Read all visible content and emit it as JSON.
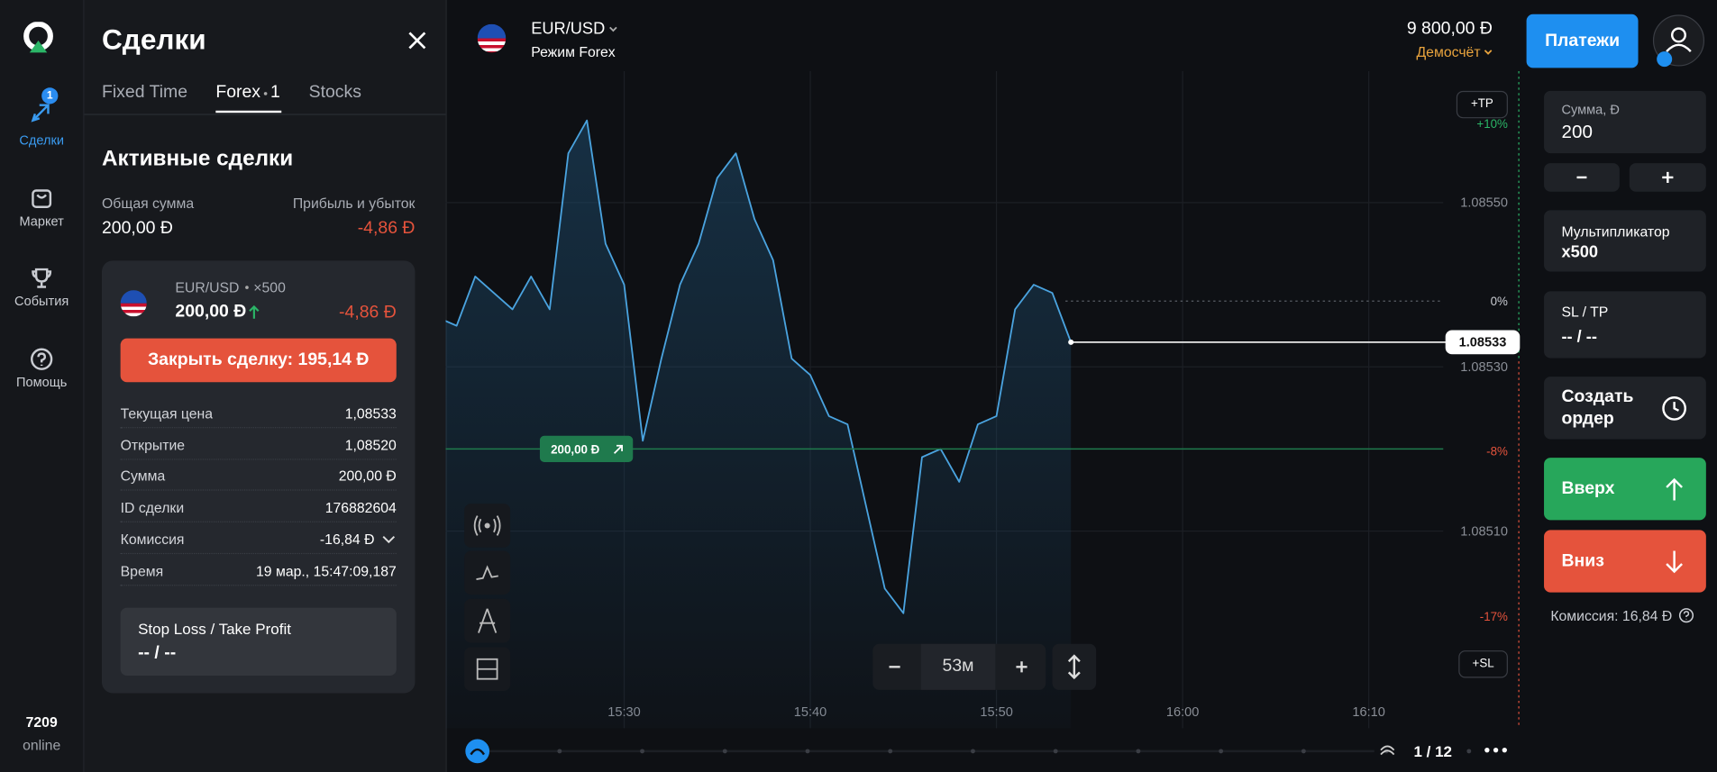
{
  "sidebar": {
    "items": [
      {
        "label": "Сделки",
        "badge": 1
      },
      {
        "label": "Маркет"
      },
      {
        "label": "События"
      },
      {
        "label": "Помощь"
      }
    ],
    "online_count": 7209,
    "online_label": "online"
  },
  "panel": {
    "title": "Сделки",
    "tabs": [
      {
        "label": "Fixed Time"
      },
      {
        "label": "Forex",
        "count": 1
      },
      {
        "label": "Stocks"
      }
    ],
    "section_title": "Активные сделки",
    "total_label": "Общая сумма",
    "total": "200,00 Đ",
    "pnl_label": "Прибыль и убыток",
    "pnl": "-4,86 Đ"
  },
  "deal": {
    "pair": "EUR/USD",
    "multiplier": "×500",
    "amount": "200,00 Đ",
    "pnl": "-4,86 Đ",
    "close_button": "Закрыть сделку: 195,14 Đ",
    "details": [
      {
        "label": "Текущая цена",
        "value": "1,08533"
      },
      {
        "label": "Открытие",
        "value": "1,08520"
      },
      {
        "label": "Сумма",
        "value": "200,00 Đ"
      },
      {
        "label": "ID сделки",
        "value": "176882604"
      },
      {
        "label": "Комиссия",
        "value": "-16,84 Đ"
      },
      {
        "label": "Время",
        "value": "19 мар., 15:47:09,187"
      }
    ],
    "sl_tp_label": "Stop Loss / Take Profit",
    "sl_tp_value": "-- / --"
  },
  "header": {
    "pair": "EUR/USD",
    "mode": "Режим Forex",
    "balance": "9 800,00 Đ",
    "account": "Демосчёт",
    "payments": "Платежи"
  },
  "chart": {
    "type": "line",
    "color": "#4aa3df",
    "x": [
      "15:20",
      "15:21",
      "15:22",
      "15:23",
      "15:24",
      "15:25",
      "15:26",
      "15:27",
      "15:28",
      "15:29",
      "15:30",
      "15:31",
      "15:32",
      "15:33",
      "15:34",
      "15:35",
      "15:36",
      "15:37",
      "15:38",
      "15:39",
      "15:40",
      "15:41",
      "15:42",
      "15:43",
      "15:44",
      "15:45",
      "15:46",
      "15:47",
      "15:48",
      "15:49",
      "15:50",
      "15:51",
      "15:52",
      "15:53",
      "15:54"
    ],
    "values": [
      1.08536,
      1.08535,
      1.08541,
      1.08539,
      1.08537,
      1.08541,
      1.08537,
      1.08556,
      1.0856,
      1.08545,
      1.0854,
      1.08521,
      1.08531,
      1.0854,
      1.08545,
      1.08553,
      1.08556,
      1.08548,
      1.08543,
      1.08531,
      1.08529,
      1.08524,
      1.08523,
      1.08513,
      1.08503,
      1.085,
      1.08519,
      1.0852,
      1.08516,
      1.08523,
      1.08524,
      1.08537,
      1.0854,
      1.08539,
      1.08533
    ],
    "xlim": [
      "15:20",
      "16:14"
    ],
    "ylim": [
      1.08486,
      1.08566
    ],
    "xticks": [
      "15:30",
      "15:40",
      "15:50",
      "16:00",
      "16:10"
    ],
    "yticks": [
      {
        "value": 1.0855,
        "label": "1.08550"
      },
      {
        "value": 1.0853,
        "label": "1.08530"
      },
      {
        "value": 1.0851,
        "label": "1.08510"
      }
    ],
    "grid": true,
    "current_price": {
      "value": 1.08533,
      "label": "1.08533"
    },
    "entry_price": 1.0852,
    "entry_label": "200,00 Đ",
    "levels": [
      "+10%",
      "0%",
      "-8%",
      "-17%"
    ],
    "tp_button": "+TP",
    "sl_button": "+SL",
    "zoom": "53м",
    "pagination": "1 / 12"
  },
  "order": {
    "amount_label": "Сумма, Đ",
    "amount": "200",
    "multiplier_label": "Мультипликатор",
    "multiplier": "x500",
    "sltp_label": "SL / TP",
    "sltp": "-- / --",
    "create_order": "Создать ордер",
    "up": "Вверх",
    "down": "Вниз",
    "commission": "Комиссия: 16,84 Đ"
  }
}
